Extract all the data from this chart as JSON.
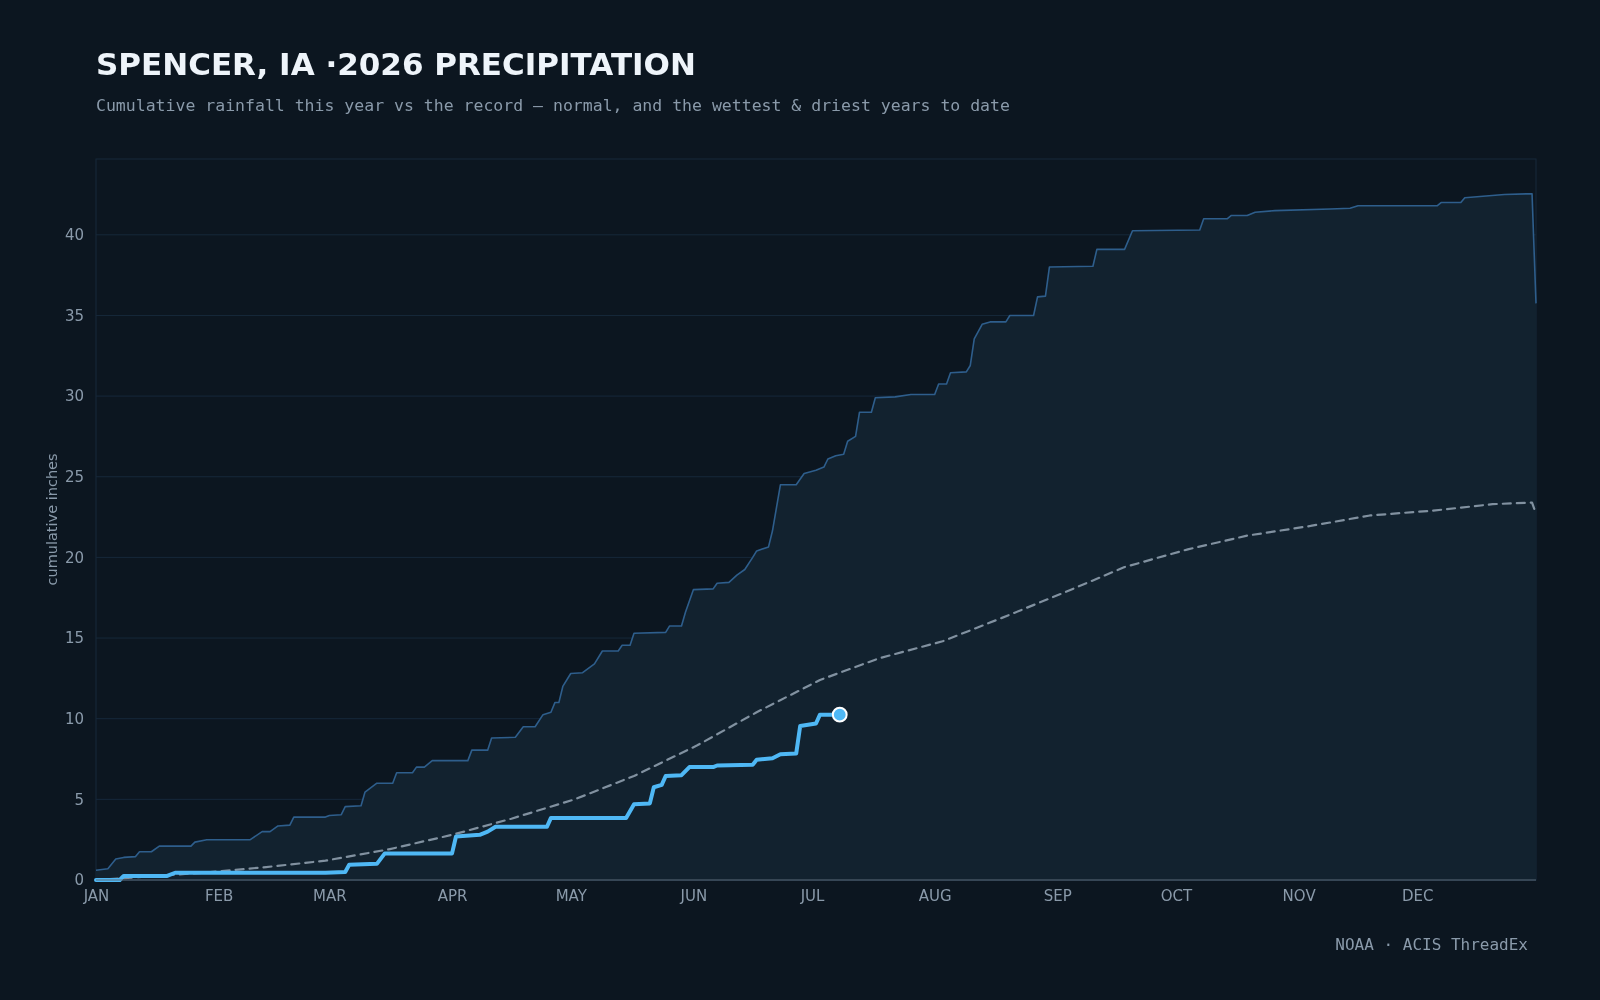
{
  "chart_data": {
    "type": "line",
    "title": "SPENCER, IA ·2026 PRECIPITATION",
    "subtitle": "Cumulative rainfall this year vs the record — normal, and the wettest & driest years to date",
    "ylabel": "cumulative inches",
    "annotations": [
      "NOAA · ACIS ThreadEx"
    ],
    "xlim": [
      "2026-01-01",
      "2026-12-31"
    ],
    "xticks": [
      {
        "value": "2026-01-01",
        "label": "JAN"
      },
      {
        "value": "2026-02-01",
        "label": "FEB"
      },
      {
        "value": "2026-03-01",
        "label": "MAR"
      },
      {
        "value": "2026-04-01",
        "label": "APR"
      },
      {
        "value": "2026-05-01",
        "label": "MAY"
      },
      {
        "value": "2026-06-01",
        "label": "JUN"
      },
      {
        "value": "2026-07-01",
        "label": "JUL"
      },
      {
        "value": "2026-08-01",
        "label": "AUG"
      },
      {
        "value": "2026-09-01",
        "label": "SEP"
      },
      {
        "value": "2026-10-01",
        "label": "OCT"
      },
      {
        "value": "2026-11-01",
        "label": "NOV"
      },
      {
        "value": "2026-12-01",
        "label": "DEC"
      }
    ],
    "ylim": [
      0,
      44.7
    ],
    "yticks": [
      0,
      5,
      10,
      15,
      20,
      25,
      30,
      35,
      40
    ],
    "grid": "y",
    "legend": false,
    "series": [
      {
        "type": "area",
        "color": "#2e5e8c",
        "x": [
          "2026-01-01",
          "2026-01-04",
          "2026-01-06",
          "2026-01-08",
          "2026-01-11",
          "2026-01-12",
          "2026-01-15",
          "2026-01-17",
          "2026-01-25",
          "2026-01-26",
          "2026-01-29",
          "2026-02-09",
          "2026-02-12",
          "2026-02-14",
          "2026-02-16",
          "2026-02-19",
          "2026-02-20",
          "2026-02-28",
          "2026-03-01",
          "2026-03-04",
          "2026-03-05",
          "2026-03-09",
          "2026-03-10",
          "2026-03-13",
          "2026-03-17",
          "2026-03-18",
          "2026-03-22",
          "2026-03-23",
          "2026-03-25",
          "2026-03-27",
          "2026-04-05",
          "2026-04-06",
          "2026-04-10",
          "2026-04-11",
          "2026-04-17",
          "2026-04-19",
          "2026-04-22",
          "2026-04-24",
          "2026-04-26",
          "2026-04-27",
          "2026-04-28",
          "2026-04-29",
          "2026-05-01",
          "2026-05-04",
          "2026-05-07",
          "2026-05-09",
          "2026-05-13",
          "2026-05-14",
          "2026-05-16",
          "2026-05-17",
          "2026-05-25",
          "2026-05-26",
          "2026-05-29",
          "2026-05-30",
          "2026-06-01",
          "2026-06-06",
          "2026-06-07",
          "2026-06-10",
          "2026-06-12",
          "2026-06-14",
          "2026-06-16",
          "2026-06-17",
          "2026-06-20",
          "2026-06-21",
          "2026-06-23",
          "2026-06-27",
          "2026-06-29",
          "2026-07-02",
          "2026-07-04",
          "2026-07-05",
          "2026-07-07",
          "2026-07-09",
          "2026-07-10",
          "2026-07-12",
          "2026-07-13",
          "2026-07-16",
          "2026-07-17",
          "2026-07-22",
          "2026-07-26",
          "2026-08-01",
          "2026-08-02",
          "2026-08-04",
          "2026-08-05",
          "2026-08-09",
          "2026-08-10",
          "2026-08-11",
          "2026-08-13",
          "2026-08-15",
          "2026-08-19",
          "2026-08-20",
          "2026-08-26",
          "2026-08-27",
          "2026-08-29",
          "2026-08-30",
          "2026-09-10",
          "2026-09-11",
          "2026-09-18",
          "2026-09-20",
          "2026-10-07",
          "2026-10-08",
          "2026-10-14",
          "2026-10-15",
          "2026-10-19",
          "2026-10-21",
          "2026-10-26",
          "2026-11-09",
          "2026-11-14",
          "2026-11-16",
          "2026-12-06",
          "2026-12-07",
          "2026-12-12",
          "2026-12-13",
          "2026-12-23",
          "2026-12-30",
          "2026-12-31"
        ],
        "values": [
          0.6,
          0.7,
          1.3,
          1.4,
          1.45,
          1.75,
          1.75,
          2.1,
          2.1,
          2.35,
          2.5,
          2.5,
          3.0,
          3.0,
          3.35,
          3.4,
          3.9,
          3.9,
          4.0,
          4.05,
          4.55,
          4.6,
          5.45,
          6.0,
          6.0,
          6.65,
          6.65,
          7.0,
          7.0,
          7.4,
          7.4,
          8.05,
          8.05,
          8.8,
          8.85,
          9.5,
          9.5,
          10.25,
          10.4,
          11.0,
          11.0,
          12.0,
          12.8,
          12.85,
          13.4,
          14.2,
          14.2,
          14.55,
          14.55,
          15.3,
          15.35,
          15.75,
          15.75,
          16.6,
          18.0,
          18.05,
          18.4,
          18.45,
          18.9,
          19.25,
          20.0,
          20.4,
          20.65,
          21.65,
          24.5,
          24.5,
          25.2,
          25.4,
          25.6,
          26.1,
          26.3,
          26.4,
          27.2,
          27.5,
          29.0,
          29.0,
          29.9,
          29.95,
          30.1,
          30.1,
          30.75,
          30.75,
          31.45,
          31.5,
          31.9,
          33.55,
          34.45,
          34.6,
          34.6,
          35.0,
          35.0,
          36.15,
          36.2,
          38.0,
          38.05,
          39.1,
          39.1,
          40.25,
          40.3,
          41.0,
          41.0,
          41.2,
          41.2,
          41.4,
          41.5,
          41.6,
          41.65,
          41.8,
          41.8,
          42.0,
          42.0,
          42.3,
          42.5,
          42.55,
          35.75
        ]
      },
      {
        "color": "#8191a0",
        "line_style": "dashed",
        "x": [
          "2026-01-01",
          "2026-01-28",
          "2026-02-13",
          "2026-02-28",
          "2026-03-16",
          "2026-04-01",
          "2026-04-16",
          "2026-05-02",
          "2026-05-17",
          "2026-06-02",
          "2026-06-17",
          "2026-07-03",
          "2026-07-18",
          "2026-08-03",
          "2026-08-18",
          "2026-09-03",
          "2026-09-18",
          "2026-10-04",
          "2026-10-19",
          "2026-11-04",
          "2026-11-19",
          "2026-12-05",
          "2026-12-20",
          "2026-12-30",
          "2026-12-31"
        ],
        "values": [
          0,
          0.45,
          0.8,
          1.2,
          1.9,
          2.8,
          3.8,
          5.0,
          6.45,
          8.35,
          10.4,
          12.4,
          13.75,
          14.8,
          16.25,
          17.85,
          19.4,
          20.5,
          21.35,
          21.95,
          22.6,
          22.9,
          23.3,
          23.4,
          22.7
        ]
      },
      {
        "type": "line",
        "color": "#4fb8f5",
        "x": [
          "2026-01-01",
          "2026-01-07",
          "2026-01-08",
          "2026-01-19",
          "2026-01-21",
          "2026-02-28",
          "2026-03-05",
          "2026-03-06",
          "2026-03-13",
          "2026-03-15",
          "2026-04-01",
          "2026-04-02",
          "2026-04-08",
          "2026-04-10",
          "2026-04-12",
          "2026-04-25",
          "2026-04-26",
          "2026-05-15",
          "2026-05-17",
          "2026-05-21",
          "2026-05-22",
          "2026-05-24",
          "2026-05-25",
          "2026-05-29",
          "2026-05-31",
          "2026-06-06",
          "2026-06-07",
          "2026-06-16",
          "2026-06-17",
          "2026-06-21",
          "2026-06-23",
          "2026-06-27",
          "2026-06-28",
          "2026-07-02",
          "2026-07-03",
          "2026-07-08"
        ],
        "values": [
          0,
          0,
          0.25,
          0.25,
          0.45,
          0.45,
          0.5,
          0.95,
          1.0,
          1.65,
          1.65,
          2.7,
          2.8,
          3.0,
          3.3,
          3.3,
          3.85,
          3.85,
          4.7,
          4.75,
          5.75,
          5.9,
          6.45,
          6.5,
          7.0,
          7.0,
          7.1,
          7.15,
          7.45,
          7.55,
          7.8,
          7.85,
          9.55,
          9.7,
          10.25,
          10.25
        ]
      },
      {
        "type": "scatter",
        "color": "#4fb8f5",
        "marker": "circle",
        "x": [
          "2026-07-08"
        ],
        "values": [
          10.25
        ]
      }
    ]
  }
}
